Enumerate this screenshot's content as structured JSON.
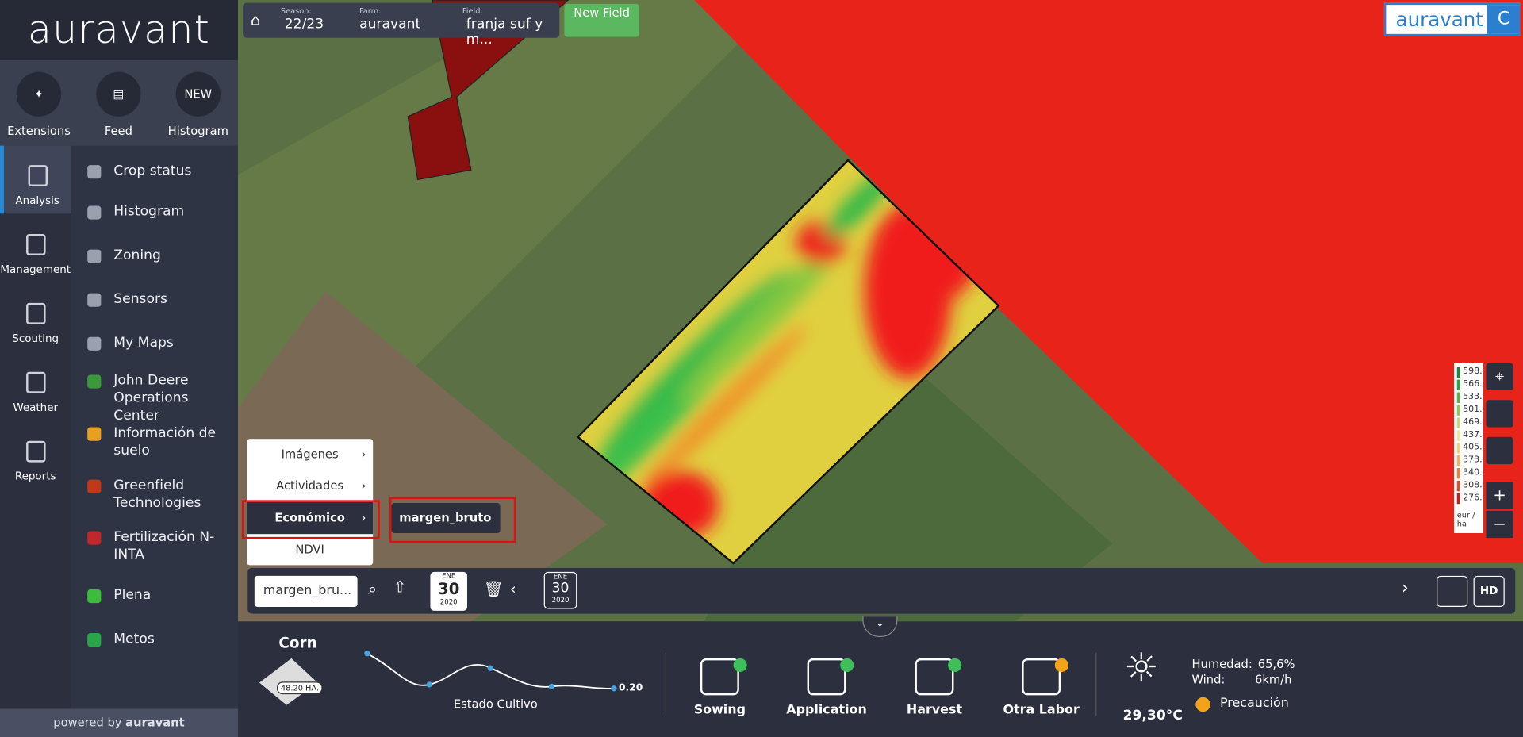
{
  "logo": "auravant",
  "top_icons": [
    {
      "label": "Extensions"
    },
    {
      "label": "Feed"
    },
    {
      "label": "Histogram",
      "badge": "NEW"
    }
  ],
  "nav": [
    "Analysis",
    "Management",
    "Scouting",
    "Weather",
    "Reports"
  ],
  "menu": [
    "Crop status",
    "Histogram",
    "Zoning",
    "Sensors",
    "My Maps",
    "John Deere Operations Center",
    "Información de suelo",
    "Greenfield Technologies",
    "Fertilización N-INTA",
    "Plena",
    "Metos"
  ],
  "footer": {
    "powered": "powered by",
    "brand": "auravant"
  },
  "topbar": {
    "season_label": "Season:",
    "season": "22/23",
    "farm_label": "Farm:",
    "farm": "auravant",
    "field_label": "Field:",
    "field": "franja suf y m...",
    "new_field": "New Field"
  },
  "brand_badge": {
    "logo": "auravant",
    "initial": "C"
  },
  "layer_menu": [
    "Imágenes",
    "Actividades",
    "Económico",
    "NDVI"
  ],
  "submenu": "margen_bruto",
  "legend": {
    "values": [
      "598.",
      "566.",
      "533.",
      "501.",
      "469.",
      "437.",
      "405.",
      "373.",
      "340.",
      "308.",
      "276."
    ],
    "unit": "eur / ha"
  },
  "toolbar": {
    "layer": "margen_bru...",
    "date1": {
      "month": "ENE",
      "day": "30",
      "year": "2020"
    },
    "date2": {
      "month": "ENE",
      "day": "30",
      "year": "2020"
    },
    "hd": "HD"
  },
  "bottom": {
    "crop": "Corn",
    "area": "48.20 HA.",
    "chart_label": "Estado Cultivo",
    "chart_value": "0.20",
    "tasks": [
      "Sowing",
      "Application",
      "Harvest",
      "Otra Labor"
    ],
    "temp": "29,30°C",
    "humidity_label": "Humedad:",
    "humidity": "65,6%",
    "wind_label": "Wind:",
    "wind": "6km/h",
    "status": "Precaución"
  }
}
